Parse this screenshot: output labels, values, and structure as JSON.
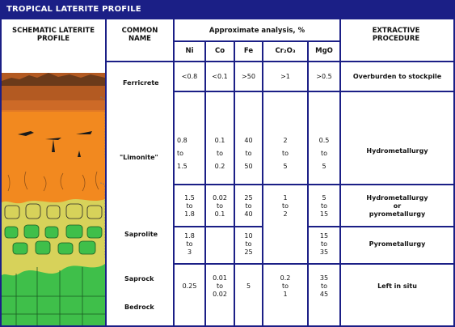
{
  "title": "TROPICAL LATERITE PROFILE",
  "headers": {
    "profile": "SCHEMATIC LATERITE PROFILE",
    "common_name": "COMMON NAME",
    "analysis": "Approximate analysis, %",
    "extractive": "EXTRACTIVE PROCEDURE",
    "ni": "Ni",
    "co": "Co",
    "fe": "Fe",
    "cr": "Cr₂O₃",
    "mgo": "MgO"
  },
  "names": {
    "ferricrete": "Ferricrete",
    "limonite": "\"Limonite\"",
    "saprolite": "Saprolite",
    "saprock": "Saprock",
    "bedrock": "Bedrock"
  },
  "ferricrete": {
    "ni": "<0.8",
    "co": "<0.1",
    "fe": ">50",
    "cr": ">1",
    "mgo": ">0.5",
    "proc": "Overburden to stockpile"
  },
  "limonite": {
    "ni": [
      "0.8",
      "to",
      "1.5"
    ],
    "co": [
      "0.1",
      "to",
      "0.2"
    ],
    "fe": [
      "40",
      "to",
      "50"
    ],
    "cr": [
      "2",
      "to",
      "5"
    ],
    "mgo": [
      "0.5",
      "to",
      "5"
    ],
    "proc": "Hydrometallurgy"
  },
  "saprolite_upper": {
    "ni": [
      "1.5",
      "to",
      "1.8"
    ],
    "co": [
      "0.02",
      "to",
      "0.1"
    ],
    "fe": [
      "25",
      "to",
      "40"
    ],
    "cr": [
      "1",
      "to",
      "2"
    ],
    "mgo": [
      "5",
      "to",
      "15"
    ],
    "proc": [
      "Hydrometallurgy",
      "or",
      "pyrometallurgy"
    ]
  },
  "saprolite_lower": {
    "ni": [
      "1.8",
      "to",
      "3"
    ],
    "fe": [
      "10",
      "to",
      "25"
    ],
    "mgo": [
      "15",
      "to",
      "35"
    ],
    "proc": "Pyrometallurgy"
  },
  "saprock": {
    "ni": "0.25",
    "co": [
      "0.01",
      "to",
      "0.02"
    ],
    "fe": "5",
    "cr": [
      "0.2",
      "to",
      "1"
    ],
    "mgo": [
      "35",
      "to",
      "45"
    ],
    "proc": "Left in situ"
  },
  "colors": {
    "navy": "#1b1f86",
    "ferricrete": "#b35a22",
    "limonite": "#f2891f",
    "saprolite": "#d7d25a",
    "bedrock": "#3fbf4a"
  }
}
